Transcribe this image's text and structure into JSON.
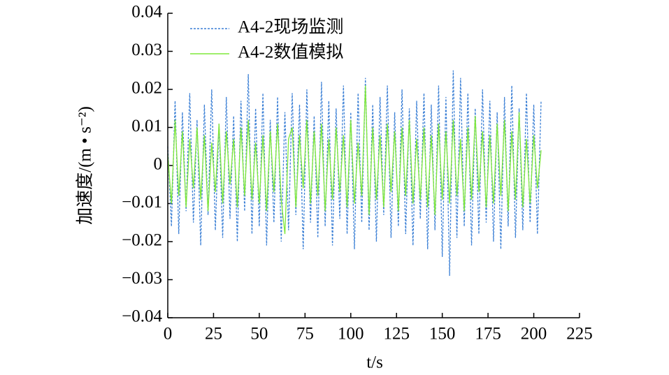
{
  "chart_data": {
    "type": "line",
    "x_label": "t/s",
    "y_label": "加速度/(m • s⁻²)",
    "legend": "top-left",
    "x": [
      0,
      2,
      4,
      6,
      8,
      10,
      12,
      14,
      16,
      18,
      20,
      22,
      24,
      26,
      28,
      30,
      32,
      34,
      36,
      38,
      40,
      42,
      44,
      46,
      48,
      50,
      52,
      54,
      56,
      58,
      60,
      62,
      64,
      66,
      68,
      70,
      72,
      74,
      76,
      78,
      80,
      82,
      84,
      86,
      88,
      90,
      92,
      94,
      96,
      98,
      100,
      102,
      104,
      106,
      108,
      110,
      112,
      114,
      116,
      118,
      120,
      122,
      124,
      126,
      128,
      130,
      132,
      134,
      136,
      138,
      140,
      142,
      144,
      146,
      148,
      150,
      152,
      154,
      156,
      158,
      160,
      162,
      164,
      166,
      168,
      170,
      172,
      174,
      176,
      178,
      180,
      182,
      184,
      186,
      188,
      190,
      192,
      194,
      196,
      198,
      200,
      202,
      204
    ],
    "series": [
      {
        "name": "A4-2现场监测",
        "color": "#3a7fd5",
        "line_style": "dashed",
        "values": [
          0.005,
          -0.016,
          0.017,
          -0.018,
          0.014,
          -0.012,
          0.019,
          -0.015,
          0.012,
          -0.021,
          0.016,
          -0.013,
          0.02,
          -0.017,
          0.011,
          -0.019,
          0.018,
          -0.014,
          0.013,
          -0.02,
          0.017,
          -0.012,
          0.024,
          -0.018,
          0.015,
          -0.016,
          0.019,
          -0.021,
          0.012,
          -0.015,
          0.018,
          -0.02,
          0.014,
          -0.017,
          0.019,
          -0.013,
          0.016,
          -0.022,
          0.02,
          -0.015,
          0.013,
          -0.019,
          0.022,
          -0.016,
          0.017,
          -0.021,
          0.015,
          -0.014,
          0.021,
          -0.018,
          0.014,
          -0.022,
          0.019,
          -0.015,
          0.023,
          -0.017,
          0.016,
          -0.02,
          0.018,
          -0.013,
          0.021,
          -0.019,
          0.014,
          -0.016,
          0.02,
          -0.018,
          0.015,
          -0.021,
          0.017,
          -0.014,
          0.019,
          -0.022,
          0.016,
          -0.017,
          0.021,
          -0.024,
          0.018,
          -0.029,
          0.025,
          -0.019,
          0.023,
          -0.016,
          0.019,
          -0.021,
          0.015,
          -0.018,
          0.02,
          -0.015,
          0.017,
          -0.02,
          0.014,
          -0.022,
          0.018,
          -0.016,
          0.021,
          -0.019,
          0.015,
          -0.017,
          0.019,
          -0.015,
          0.016,
          -0.018,
          0.017
        ]
      },
      {
        "name": "A4-2数值模拟",
        "color": "#7ee83a",
        "line_style": "solid",
        "values": [
          0.003,
          -0.01,
          0.012,
          -0.008,
          0.009,
          -0.011,
          0.007,
          -0.006,
          0.01,
          -0.009,
          0.008,
          -0.012,
          0.006,
          -0.007,
          0.011,
          -0.01,
          0.009,
          -0.005,
          0.007,
          -0.011,
          0.01,
          -0.008,
          0.012,
          -0.009,
          0.006,
          -0.01,
          0.008,
          -0.012,
          0.009,
          -0.007,
          0.011,
          -0.009,
          -0.018,
          0.007,
          0.01,
          -0.011,
          0.008,
          -0.006,
          0.012,
          -0.01,
          0.009,
          -0.008,
          0.011,
          -0.012,
          0.007,
          -0.009,
          0.01,
          -0.007,
          0.008,
          -0.011,
          0.012,
          -0.01,
          0.006,
          -0.008,
          0.021,
          -0.013,
          0.01,
          -0.009,
          0.008,
          -0.011,
          0.011,
          -0.007,
          0.009,
          -0.012,
          0.01,
          -0.008,
          0.012,
          -0.01,
          0.007,
          -0.009,
          0.01,
          -0.011,
          0.008,
          -0.013,
          0.011,
          -0.009,
          0.009,
          -0.01,
          0.012,
          -0.008,
          0.007,
          -0.012,
          0.01,
          -0.009,
          0.013,
          -0.007,
          0.009,
          -0.011,
          0.008,
          -0.01,
          0.011,
          -0.008,
          0.012,
          -0.012,
          0.009,
          -0.009,
          0.014,
          -0.011,
          0.007,
          -0.01,
          0.008,
          -0.006,
          0.004
        ]
      }
    ],
    "xlim": [
      0,
      225
    ],
    "xticks": [
      0,
      25,
      50,
      75,
      100,
      125,
      150,
      175,
      200,
      225
    ],
    "ylim": [
      -0.04,
      0.04
    ],
    "yticks": [
      {
        "value": -0.04,
        "label": "−0.04"
      },
      {
        "value": -0.03,
        "label": "−0.03"
      },
      {
        "value": -0.02,
        "label": "−0.02"
      },
      {
        "value": -0.01,
        "label": "−0.01"
      },
      0,
      0.01,
      0.02,
      0.03,
      0.04
    ]
  }
}
